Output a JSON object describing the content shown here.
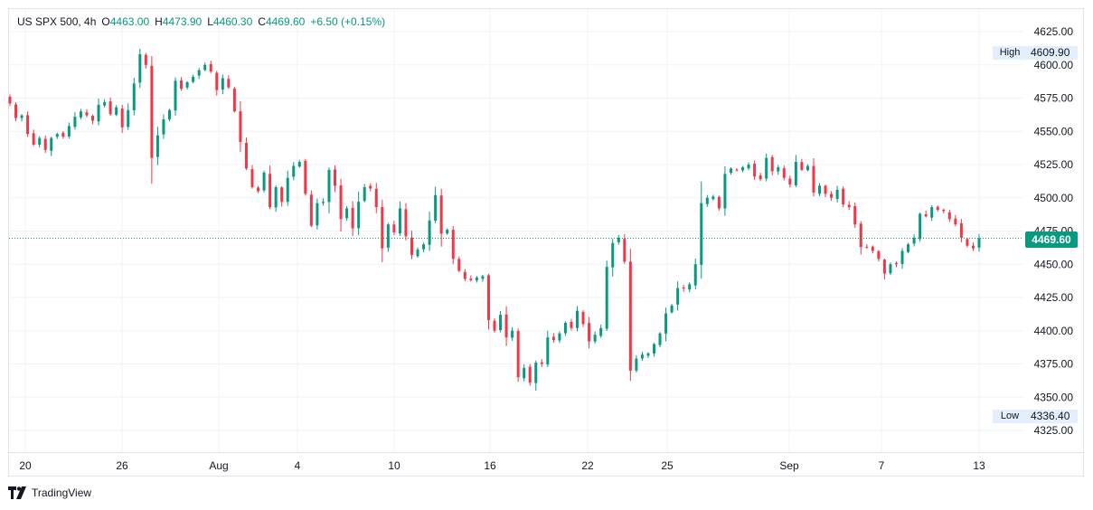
{
  "legend": {
    "symbol": "US SPX 500",
    "interval": "4h",
    "open_label": "O",
    "open": "4463.00",
    "high_label": "H",
    "high": "4473.90",
    "low_label": "L",
    "low": "4460.30",
    "close_label": "C",
    "close": "4469.60",
    "change": "+6.50 (+0.15%)"
  },
  "markers": {
    "high_label": "High",
    "high_value": "4609.90",
    "low_label": "Low",
    "low_value": "4336.40",
    "last_price": "4469.60"
  },
  "footer": {
    "brand": "TradingView"
  },
  "colors": {
    "up": "#089981",
    "down": "#f23645",
    "grid": "#f0f3fa",
    "axis_text": "#131722",
    "last_line": "#089981"
  },
  "chart_data": {
    "type": "candlestick",
    "title": "US SPX 500",
    "interval": "4h",
    "y_ticks": [
      4625,
      4600,
      4575,
      4550,
      4525,
      4500,
      4475,
      4450,
      4425,
      4400,
      4375,
      4350,
      4325
    ],
    "y_tick_labels": [
      "4625.00",
      "4600.00",
      "4575.00",
      "4550.00",
      "4525.00",
      "4500.00",
      "4475.00",
      "4450.00",
      "4425.00",
      "4400.00",
      "4375.00",
      "4350.00",
      "4325.00"
    ],
    "x_tick_labels": [
      "20",
      "26",
      "Aug",
      "4",
      "10",
      "16",
      "22",
      "25",
      "Sep",
      "7",
      "13"
    ],
    "ylim": [
      4318,
      4632
    ],
    "last_price": 4469.6,
    "series": [
      {
        "name": "close",
        "values": [
          4571,
          4560,
          4562,
          4548,
          4540,
          4545,
          4536,
          4545,
          4548,
          4546,
          4554,
          4561,
          4565,
          4562,
          4558,
          4570,
          4572,
          4563,
          4568,
          4553,
          4566,
          4586,
          4608,
          4600,
          4530,
          4547,
          4559,
          4566,
          4588,
          4582,
          4587,
          4591,
          4596,
          4600,
          4595,
          4581,
          4590,
          4583,
          4565,
          4542,
          4522,
          4508,
          4505,
          4519,
          4493,
          4508,
          4497,
          4515,
          4524,
          4527,
          4503,
          4479,
          4496,
          4497,
          4521,
          4509,
          4484,
          4492,
          4477,
          4497,
          4508,
          4507,
          4493,
          4462,
          4480,
          4474,
          4492,
          4471,
          4457,
          4461,
          4465,
          4483,
          4502,
          4473,
          4476,
          4454,
          4445,
          4439,
          4438,
          4440,
          4441,
          4408,
          4400,
          4412,
          4395,
          4400,
          4365,
          4372,
          4361,
          4376,
          4375,
          4395,
          4393,
          4398,
          4406,
          4402,
          4415,
          4405,
          4392,
          4397,
          4402,
          4448,
          4466,
          4470,
          4452,
          4370,
          4379,
          4382,
          4383,
          4390,
          4398,
          4413,
          4419,
          4432,
          4432,
          4435,
          4450,
          4496,
          4500,
          4501,
          4492,
          4518,
          4522,
          4521,
          4523,
          4525,
          4516,
          4514,
          4530,
          4520,
          4523,
          4515,
          4510,
          4527,
          4521,
          4524,
          4504,
          4509,
          4503,
          4500,
          4506,
          4495,
          4493,
          4480,
          4463,
          4463,
          4460,
          4454,
          4443,
          4450,
          4450,
          4460,
          4465,
          4470,
          4488,
          4486,
          4493,
          4491,
          4490,
          4484,
          4480,
          4470,
          4464,
          4462,
          4469.6
        ]
      }
    ]
  }
}
